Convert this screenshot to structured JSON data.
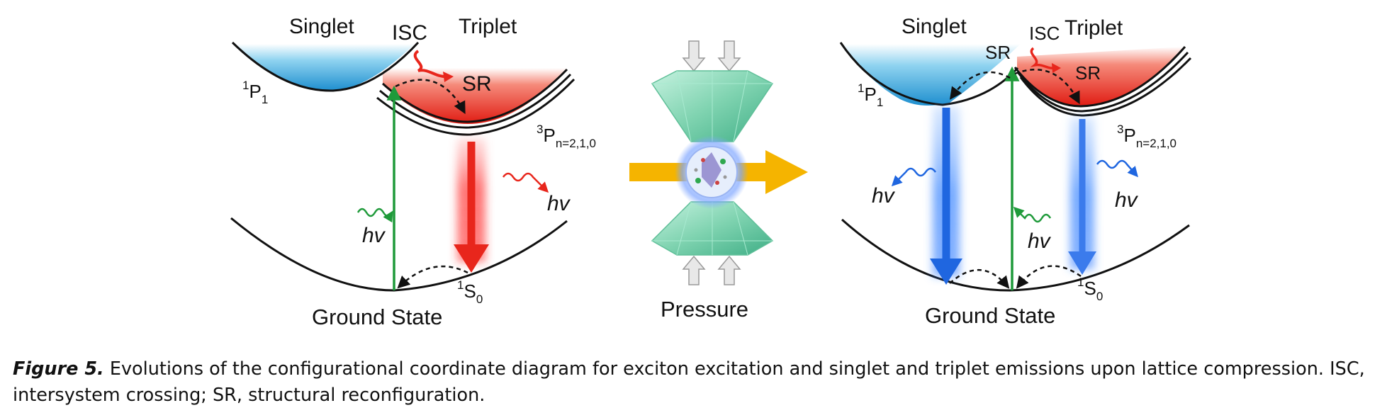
{
  "left_panel": {
    "singlet": "Singlet",
    "triplet": "Triplet",
    "isc": "ISC",
    "sr": "SR",
    "p1_main": "P",
    "p1_sup": "1",
    "p1_sub": "1",
    "p3_main": "P",
    "p3_sup": "3",
    "p3_sub": "n=2,1,0",
    "s0_main": "S",
    "s0_sup": "1",
    "s0_sub": "0",
    "hv_excite": "hv",
    "hv_emit": "hv",
    "ground": "Ground State"
  },
  "center": {
    "pressure": "Pressure"
  },
  "right_panel": {
    "singlet": "Singlet",
    "triplet": "Triplet",
    "isc": "ISC",
    "sr_left": "SR",
    "sr_right": "SR",
    "p1_main": "P",
    "p1_sup": "1",
    "p1_sub": "1",
    "p3_main": "P",
    "p3_sup": "3",
    "p3_sub": "n=2,1,0",
    "s0_main": "S",
    "s0_sup": "1",
    "s0_sub": "0",
    "hv_singlet": "hv",
    "hv_excite": "hv",
    "hv_triplet": "hv",
    "ground": "Ground State"
  },
  "caption": {
    "label": "Figure 5.",
    "text": " Evolutions of the configurational coordinate diagram for exciton excitation and singlet and triplet emissions upon lattice compression. ISC, intersystem crossing; SR, structural reconfiguration."
  },
  "colors": {
    "singlet_fill": "#3aa6d8",
    "triplet_fill": "#e8261c",
    "excitation_green": "#1f9a3a",
    "emission_red": "#e8261c",
    "emission_blue": "#1f66e0",
    "pressure_arrow": "#f5b400",
    "diamond": "#7fd3b0"
  }
}
